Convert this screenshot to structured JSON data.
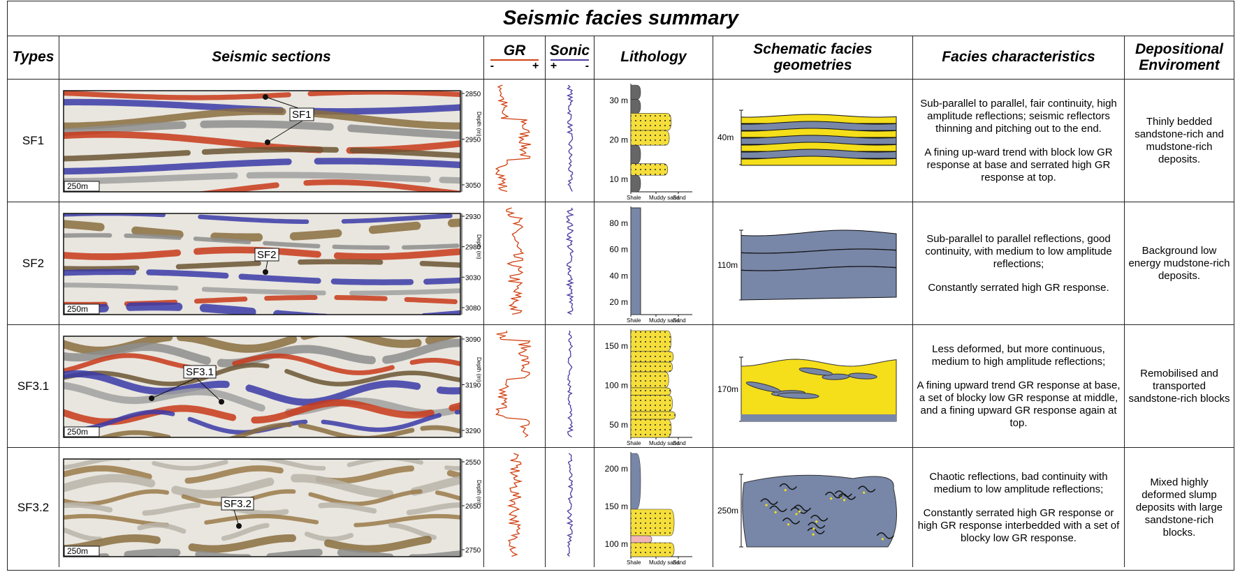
{
  "title": "Seismic facies summary",
  "headers": {
    "types": "Types",
    "seismic": "Seismic  sections",
    "gr": "GR",
    "sonic": "Sonic",
    "lithology": "Lithology",
    "schematic": "Schematic facies geometries",
    "facies": "Facies characteristics",
    "environment": "Depositional Enviroment"
  },
  "gr_signs": [
    "-",
    "+"
  ],
  "sonic_signs": [
    "+",
    "-"
  ],
  "rows": [
    {
      "type": "SF1",
      "seismic_labels": [
        "SF1"
      ],
      "scale": "250m",
      "depth_label": "Depth (m)",
      "depths": [
        2850,
        2950,
        3050
      ],
      "litho_scale": [
        "30 m",
        "20 m",
        "10 m"
      ],
      "litho_axis": [
        "Shale",
        "Muddy sand",
        "Sand"
      ],
      "thickness": "40m",
      "facies": [
        "Sub-parallel to parallel, fair continuity, high amplitude reflections; seismic reflectors thinning and pitching out to the end.",
        "A fining up-ward trend with block low GR response at base and serrated high GR response at top."
      ],
      "environment": "Thinly bedded sandstone-rich and mudstone-rich deposits."
    },
    {
      "type": "SF2",
      "seismic_labels": [
        "SF2"
      ],
      "scale": "250m",
      "depth_label": "Depth (m)",
      "depths": [
        2930,
        2980,
        3030,
        3080
      ],
      "litho_scale": [
        "80 m",
        "60 m",
        "40 m",
        "20 m"
      ],
      "litho_axis": [
        "Shale",
        "Muddy sand",
        "Sand"
      ],
      "thickness": "110m",
      "facies": [
        "Sub-parallel to parallel reflections, good continuity, with medium to low amplitude reflections;",
        "Constantly serrated high GR response."
      ],
      "environment": "Background low energy mudstone-rich deposits."
    },
    {
      "type": "SF3.1",
      "seismic_labels": [
        "SF3.1"
      ],
      "scale": "250m",
      "depth_label": "Depth (m)",
      "depths": [
        3090,
        3190,
        3290
      ],
      "litho_scale": [
        "150 m",
        "100 m",
        "50 m"
      ],
      "litho_axis": [
        "Shale",
        "Muddy sand",
        "Sand"
      ],
      "thickness": "170m",
      "facies": [
        "Less deformed, but more continuous, medium to high amplitude reflections;",
        "A fining upward trend GR response at base, a set of blocky low GR response at middle, and a fining upward GR response again at top."
      ],
      "environment": "Remobilised and transported sandstone-rich blocks"
    },
    {
      "type": "SF3.2",
      "seismic_labels": [
        "SF3.2"
      ],
      "scale": "250m",
      "depth_label": "Depth (m)",
      "depths": [
        2550,
        2650,
        2750
      ],
      "litho_scale": [
        "200 m",
        "150 m",
        "100 m"
      ],
      "litho_axis": [
        "Shale",
        "Muddy sand",
        "Sand"
      ],
      "thickness": "250m",
      "facies": [
        "Chaotic reflections, bad continuity with medium to low amplitude reflections;",
        "Constantly serrated high GR response or high GR response interbedded with a set of blocky low GR response."
      ],
      "environment": "Mixed highly deformed slump deposits with large sandstone-rich blocks."
    }
  ]
}
